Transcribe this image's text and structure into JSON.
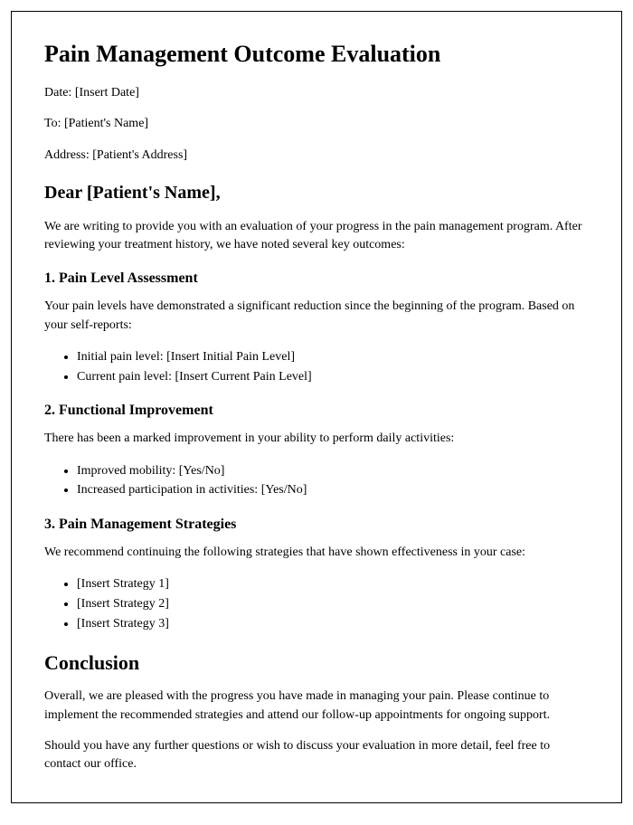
{
  "title": "Pain Management Outcome Evaluation",
  "meta": {
    "date_label": "Date: [Insert Date]",
    "to_label": "To: [Patient's Name]",
    "address_label": "Address: [Patient's Address]"
  },
  "salutation": "Dear [Patient's Name],",
  "intro": "We are writing to provide you with an evaluation of your progress in the pain management program. After reviewing your treatment history, we have noted several key outcomes:",
  "sections": {
    "s1": {
      "heading": "1. Pain Level Assessment",
      "text": "Your pain levels have demonstrated a significant reduction since the beginning of the program. Based on your self-reports:",
      "items": [
        "Initial pain level: [Insert Initial Pain Level]",
        "Current pain level: [Insert Current Pain Level]"
      ]
    },
    "s2": {
      "heading": "2. Functional Improvement",
      "text": "There has been a marked improvement in your ability to perform daily activities:",
      "items": [
        "Improved mobility: [Yes/No]",
        "Increased participation in activities: [Yes/No]"
      ]
    },
    "s3": {
      "heading": "3. Pain Management Strategies",
      "text": "We recommend continuing the following strategies that have shown effectiveness in your case:",
      "items": [
        "[Insert Strategy 1]",
        "[Insert Strategy 2]",
        "[Insert Strategy 3]"
      ]
    }
  },
  "conclusion": {
    "heading": "Conclusion",
    "p1": "Overall, we are pleased with the progress you have made in managing your pain. Please continue to implement the recommended strategies and attend our follow-up appointments for ongoing support.",
    "p2": "Should you have any further questions or wish to discuss your evaluation in more detail, feel free to contact our office."
  }
}
